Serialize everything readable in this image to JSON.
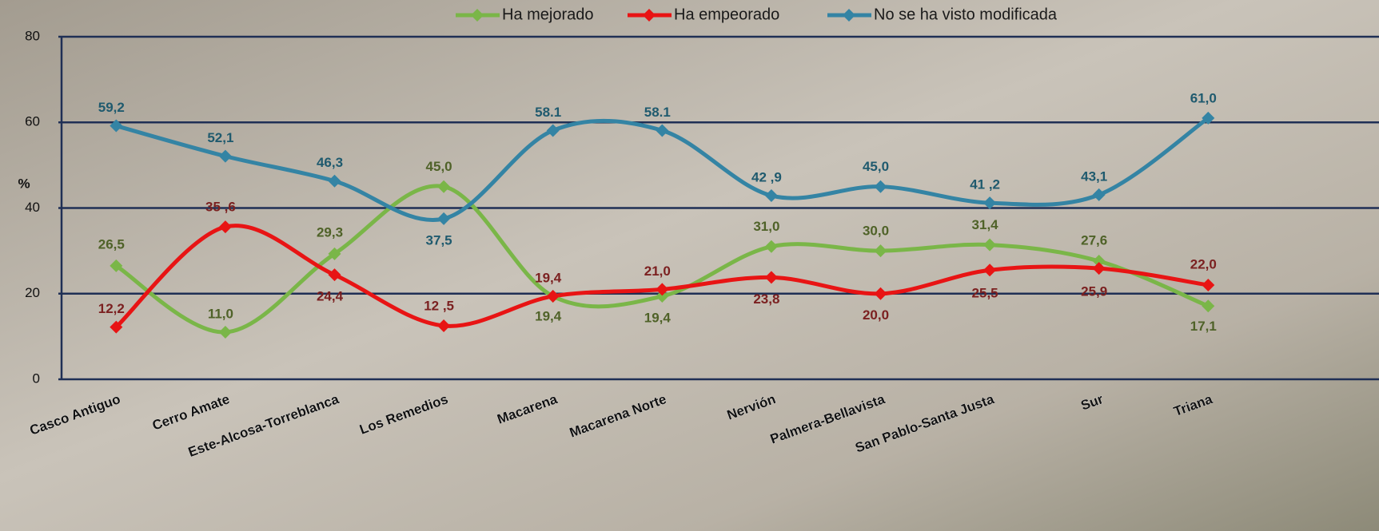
{
  "chart_data": {
    "type": "line",
    "y_axis_label": "%",
    "categories": [
      "Casco Antiguo",
      "Cerro Amate",
      "Este-Alcosa-Torreblanca",
      "Los Remedios",
      "Macarena",
      "Macarena Norte",
      "Nervión",
      "Palmera-Bellavista",
      "San Pablo-Santa  Justa",
      "Sur",
      "Triana"
    ],
    "series": [
      {
        "name": "Ha mejorado",
        "color": "#7ab648",
        "label_color": "#4f6228",
        "values": [
          26.5,
          11.0,
          29.3,
          45.0,
          19.4,
          19.4,
          31.0,
          30.0,
          31.4,
          27.6,
          17.1
        ],
        "value_labels": [
          "26,5",
          "11,0",
          "29,3",
          "45,0",
          "19,4",
          "19,4",
          "31,0",
          "30,0",
          "31,4",
          "27,6",
          "17,1"
        ]
      },
      {
        "name": "Ha empeorado",
        "color": "#e81414",
        "label_color": "#7b2020",
        "values": [
          12.2,
          35.6,
          24.4,
          12.5,
          19.4,
          21.0,
          23.8,
          20.0,
          25.5,
          25.9,
          22.0
        ],
        "value_labels": [
          "12,2",
          "35 ,6",
          "24,4",
          "12 ,5",
          "19,4",
          "21,0",
          "23,8",
          "20,0",
          "25,5",
          "25,9",
          "22,0"
        ]
      },
      {
        "name": "No se ha visto modificada",
        "color": "#3484a4",
        "label_color": "#1f5a6e",
        "values": [
          59.2,
          52.1,
          46.3,
          37.5,
          58.1,
          58.1,
          42.9,
          45.0,
          41.2,
          43.1,
          61.0
        ],
        "value_labels": [
          "59,2",
          "52,1",
          "46,3",
          "37,5",
          "58.1",
          "58.1",
          "42 ,9",
          "45,0",
          "41 ,2",
          "43,1",
          "61,0"
        ]
      }
    ],
    "ylim": [
      0,
      80
    ],
    "yticks": [
      0,
      20,
      40,
      60,
      80
    ],
    "grid": true,
    "legend": "top"
  }
}
